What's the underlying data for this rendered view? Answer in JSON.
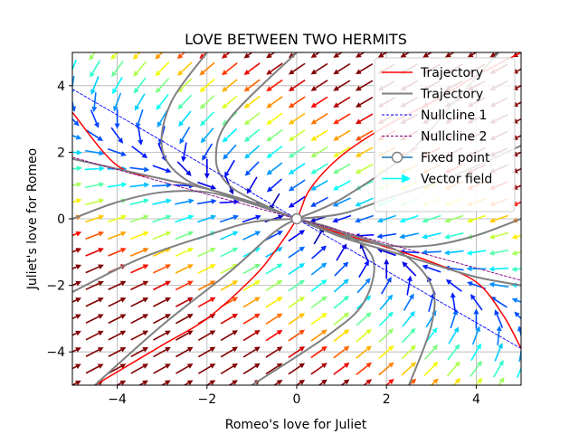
{
  "chart_data": {
    "type": "line",
    "title": "LOVE BETWEEN TWO HERMITS",
    "xlabel": "Romeo's love for Juliet",
    "ylabel": "Juliet's love for Romeo",
    "xlim": [
      -5,
      5
    ],
    "ylim": [
      -5,
      5
    ],
    "xticks": [
      -4,
      -2,
      0,
      2,
      4
    ],
    "yticks": [
      -4,
      -2,
      0,
      2,
      4
    ],
    "grid": true,
    "legend_position": "top-right",
    "colors": {
      "red": "#ff0000",
      "gray": "#808080",
      "nullcline1": "#0000ff",
      "nullcline2": "#800080",
      "fixed_point": "#1f77b4",
      "vector_field": "#00ffff"
    },
    "series": [
      {
        "name": "Trajectory",
        "kind": "red",
        "x": [
          -5,
          -4,
          -3,
          -2,
          -1,
          -0.5,
          0,
          0.3,
          1,
          2,
          3,
          4,
          4.6,
          5
        ],
        "y": [
          3.2,
          1.6,
          1.2,
          0.9,
          0.5,
          0.25,
          0,
          -0.15,
          -0.45,
          -0.85,
          -1.3,
          -1.9,
          -2.9,
          -3.9
        ]
      },
      {
        "name": "Trajectory",
        "kind": "red",
        "x": [
          -4.5,
          -3,
          -2,
          -1,
          -0.5,
          0,
          0.3,
          1,
          2,
          3,
          4,
          5
        ],
        "y": [
          -5,
          -3.8,
          -3,
          -1.8,
          -1,
          0,
          0.9,
          1.9,
          2.8,
          3.5,
          4.3,
          5
        ]
      },
      {
        "name": "Trajectory",
        "kind": "gray",
        "x": [
          -5,
          -4,
          -3,
          -2,
          -1,
          0
        ],
        "y": [
          0,
          0.5,
          0.8,
          0.8,
          0.45,
          0
        ]
      },
      {
        "name": "Trajectory",
        "kind": "gray",
        "x": [
          -5,
          -4,
          -3,
          -2,
          -1,
          0
        ],
        "y": [
          1.8,
          1.5,
          1.2,
          0.9,
          0.5,
          0
        ]
      },
      {
        "name": "Trajectory",
        "kind": "gray",
        "x": [
          -2,
          -2.8,
          -3.0,
          -2.5,
          -1.5,
          -0.5,
          0
        ],
        "y": [
          5,
          3.5,
          2.1,
          1.2,
          0.7,
          0.25,
          0
        ]
      },
      {
        "name": "Trajectory",
        "kind": "gray",
        "x": [
          0,
          -1.5,
          -1.8,
          -1.5,
          -0.7,
          0
        ],
        "y": [
          5,
          3.0,
          1.8,
          1.0,
          0.4,
          0
        ]
      },
      {
        "name": "Trajectory",
        "kind": "gray",
        "x": [
          -5,
          -3.5,
          -2,
          -1,
          0
        ],
        "y": [
          -2.2,
          -1.2,
          -0.5,
          -0.1,
          0
        ]
      },
      {
        "name": "Trajectory",
        "kind": "gray",
        "x": [
          -4.5,
          -3,
          -1.5,
          -0.5,
          0
        ],
        "y": [
          -5,
          -3.2,
          -1.6,
          -0.4,
          0
        ]
      },
      {
        "name": "Trajectory",
        "kind": "gray",
        "x": [
          0,
          1,
          2,
          3,
          4,
          5
        ],
        "y": [
          0,
          -0.5,
          -0.8,
          -0.8,
          -0.5,
          0
        ]
      },
      {
        "name": "Trajectory",
        "kind": "gray",
        "x": [
          0,
          1,
          2,
          3,
          4,
          5
        ],
        "y": [
          0,
          -0.55,
          -0.95,
          -1.35,
          -1.75,
          -2.0
        ]
      },
      {
        "name": "Trajectory",
        "kind": "gray",
        "x": [
          0,
          1,
          2.3,
          3.0,
          3.0,
          2.5
        ],
        "y": [
          0,
          -0.4,
          -1.0,
          -2.0,
          -3.2,
          -5
        ]
      },
      {
        "name": "Trajectory",
        "kind": "gray",
        "x": [
          0,
          1,
          1.7,
          1.5,
          0.7,
          -1
        ],
        "y": [
          0,
          -0.4,
          -1.2,
          -2.5,
          -3.5,
          -5
        ]
      },
      {
        "name": "Trajectory",
        "kind": "gray",
        "x": [
          0,
          1,
          2,
          3.5,
          5
        ],
        "y": [
          0,
          0.15,
          0.6,
          1.3,
          2.2
        ]
      },
      {
        "name": "Trajectory",
        "kind": "gray",
        "x": [
          0,
          1,
          2.5,
          3.5,
          4.5
        ],
        "y": [
          0,
          0.6,
          2.0,
          3.5,
          5
        ]
      },
      {
        "name": "Nullcline 1",
        "kind": "nullcline1",
        "x": [
          -5,
          5
        ],
        "y": [
          3.9,
          -3.9
        ]
      },
      {
        "name": "Nullcline 2",
        "kind": "nullcline2",
        "x": [
          -5,
          5
        ],
        "y": [
          1.85,
          -1.85
        ]
      }
    ],
    "fixed_point": [
      0,
      0
    ],
    "legend": [
      {
        "label": "Trajectory",
        "kind": "red"
      },
      {
        "label": "Trajectory",
        "kind": "gray"
      },
      {
        "label": "Nullcline 1",
        "kind": "nullcline1"
      },
      {
        "label": "Nullcline 2",
        "kind": "nullcline2"
      },
      {
        "label": "Fixed point",
        "kind": "fixed_point"
      },
      {
        "label": "Vector field",
        "kind": "vector_field"
      }
    ]
  }
}
